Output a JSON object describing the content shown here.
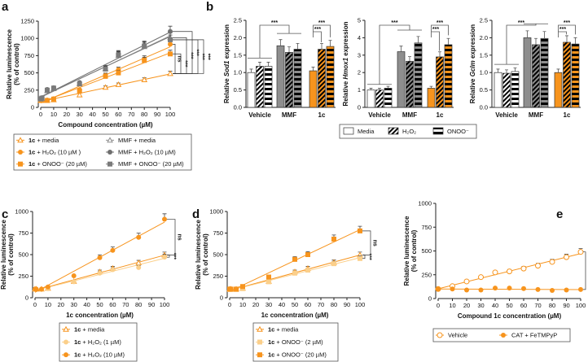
{
  "colors": {
    "orange": "#f7941d",
    "light_orange": "#fbcf8a",
    "gray": "#8e8e8e",
    "dark_gray": "#6e6e6e",
    "axis": "#222222"
  },
  "panel_labels": [
    "a",
    "b",
    "c",
    "d",
    "e"
  ],
  "chart_data": [
    {
      "id": "a",
      "type": "line",
      "xlabel": "Compound concentration (µM)",
      "ylabel": [
        "Relative luminescence",
        "(% of control)"
      ],
      "xlim": [
        0,
        100
      ],
      "ylim": [
        0,
        1250
      ],
      "xticks": [
        "0",
        "10",
        "20",
        "30",
        "40",
        "50",
        "60",
        "70",
        "80",
        "90",
        "100"
      ],
      "yticks": [
        "0",
        "250",
        "500",
        "750",
        "1000",
        "1250"
      ],
      "x": [
        0,
        1,
        5,
        10,
        30,
        50,
        60,
        80,
        100
      ],
      "series": [
        {
          "name_bold": "1c",
          "name": " + media",
          "color": "#f7941d",
          "marker": "triangle-open",
          "values": [
            100,
            100,
            100,
            110,
            180,
            290,
            330,
            400,
            490
          ]
        },
        {
          "name_bold": "1c",
          "name": " + H₂O₂ (10 µM )",
          "color": "#f7941d",
          "marker": "circle",
          "values": [
            100,
            100,
            105,
            125,
            255,
            465,
            545,
            700,
            915
          ]
        },
        {
          "name_bold": "1c",
          "name": " + ONOO⁻ (20 µM)",
          "color": "#f7941d",
          "marker": "square",
          "values": [
            100,
            100,
            100,
            120,
            235,
            450,
            500,
            680,
            775
          ]
        },
        {
          "name_bold": "",
          "name": "MMF + media",
          "color": "#8e8e8e",
          "marker": "triangle-open",
          "values": [
            120,
            130,
            240,
            270,
            345,
            560,
            750,
            880,
            1010
          ]
        },
        {
          "name_bold": "",
          "name": "MMF + H₂O₂ (10 µM)",
          "color": "#6e6e6e",
          "marker": "circle",
          "values": [
            130,
            140,
            260,
            285,
            360,
            570,
            770,
            900,
            1100
          ]
        },
        {
          "name_bold": "",
          "name": "MMF + ONOO⁻ (20 µM)",
          "color": "#7a7a7a",
          "marker": "square",
          "values": [
            125,
            135,
            250,
            280,
            340,
            555,
            760,
            890,
            980
          ]
        }
      ],
      "significance": [
        "ns",
        "***",
        "***",
        "***",
        "***",
        "***"
      ]
    },
    {
      "id": "b1",
      "type": "bar",
      "ylabel_pre": "Relative ",
      "ylabel_gene": "Sod1",
      "ylabel_post": " expression",
      "ylim": [
        0,
        2.5
      ],
      "yticks": [
        "0.0",
        "0.5",
        "1.0",
        "1.5",
        "2.0",
        "2.5"
      ],
      "categories": [
        "Vehicle",
        "MMF",
        "1c"
      ],
      "values": [
        [
          1.0,
          1.18,
          1.18
        ],
        [
          1.77,
          1.58,
          1.67
        ],
        [
          1.05,
          1.67,
          1.75
        ]
      ],
      "significance": [
        "***",
        "***",
        "***"
      ]
    },
    {
      "id": "b2",
      "type": "bar",
      "ylabel_pre": "Relative ",
      "ylabel_gene": "Hmox1",
      "ylabel_post": " expression",
      "ylim": [
        0,
        5
      ],
      "yticks": [
        "0",
        "1",
        "2",
        "3",
        "4",
        "5"
      ],
      "categories": [
        "Vehicle",
        "MMF",
        "1c"
      ],
      "values": [
        [
          1.0,
          1.0,
          1.1
        ],
        [
          3.2,
          2.65,
          3.7
        ],
        [
          1.1,
          2.9,
          3.6
        ]
      ],
      "significance": [
        "***",
        "***",
        "***"
      ]
    },
    {
      "id": "b3",
      "type": "bar",
      "ylabel_pre": "Relative ",
      "ylabel_gene": "Gclm",
      "ylabel_post": " expression",
      "ylim": [
        0,
        2.5
      ],
      "yticks": [
        "0.0",
        "0.5",
        "1.0",
        "1.5",
        "2.0",
        "2.5"
      ],
      "categories": [
        "Vehicle",
        "MMF",
        "1c"
      ],
      "values": [
        [
          1.0,
          0.98,
          1.03
        ],
        [
          2.0,
          1.8,
          1.98
        ],
        [
          1.0,
          1.87,
          1.82
        ]
      ],
      "significance": [
        "***",
        "***",
        "***"
      ]
    },
    {
      "id": "b_legend",
      "type": "legend",
      "entries": [
        "Media",
        "H₂O₂",
        "ONOO⁻"
      ]
    },
    {
      "id": "c",
      "type": "line",
      "xlabel": "1c concentration (µM)",
      "ylabel": [
        "Relative luminescence",
        "(% of control)"
      ],
      "xlim": [
        0,
        100
      ],
      "ylim": [
        0,
        1000
      ],
      "xticks": [
        "0",
        "10",
        "20",
        "30",
        "40",
        "50",
        "60",
        "70",
        "80",
        "90",
        "100"
      ],
      "yticks": [
        "0",
        "250",
        "500",
        "750",
        "1000"
      ],
      "x": [
        0,
        1,
        5,
        10,
        30,
        50,
        60,
        80,
        100
      ],
      "series": [
        {
          "name_bold": "1c",
          "name": " + media",
          "color": "#f7941d",
          "marker": "triangle-open",
          "values": [
            100,
            100,
            100,
            110,
            190,
            300,
            340,
            405,
            495
          ]
        },
        {
          "name_bold": "1c",
          "name": " + H₂O₂ (1 µM)",
          "color": "#fbcf8a",
          "marker": "circle",
          "values": [
            95,
            95,
            95,
            105,
            185,
            285,
            325,
            350,
            470
          ]
        },
        {
          "name_bold": "1c",
          "name": " + H₂O₂ (10 µM)",
          "color": "#f7941d",
          "marker": "circle",
          "values": [
            100,
            100,
            100,
            125,
            255,
            465,
            550,
            700,
            910
          ]
        }
      ],
      "significance": [
        "***",
        "ns"
      ]
    },
    {
      "id": "d",
      "type": "line",
      "xlabel": "1c concentration (µM)",
      "ylabel": [
        "Relative luminescence",
        "(% of control)"
      ],
      "xlim": [
        0,
        100
      ],
      "ylim": [
        0,
        1000
      ],
      "xticks": [
        "0",
        "10",
        "20",
        "30",
        "40",
        "50",
        "60",
        "70",
        "80",
        "90",
        "100"
      ],
      "yticks": [
        "0",
        "250",
        "500",
        "750",
        "1000"
      ],
      "x": [
        0,
        1,
        5,
        10,
        30,
        50,
        60,
        80,
        100
      ],
      "series": [
        {
          "name_bold": "1c",
          "name": " + media",
          "color": "#f7941d",
          "marker": "triangle-open",
          "values": [
            100,
            100,
            100,
            110,
            190,
            300,
            340,
            410,
            495
          ]
        },
        {
          "name_bold": "1c",
          "name": " + ONOO⁻ (2 µM)",
          "color": "#fbcf8a",
          "marker": "square",
          "values": [
            95,
            95,
            95,
            105,
            185,
            285,
            320,
            395,
            455
          ]
        },
        {
          "name_bold": "1c",
          "name": " + ONOO⁻ (20 µM)",
          "color": "#f7941d",
          "marker": "square",
          "values": [
            100,
            100,
            100,
            130,
            240,
            445,
            500,
            680,
            775
          ]
        }
      ],
      "significance": [
        "***",
        "ns"
      ]
    },
    {
      "id": "e",
      "type": "line",
      "xlabel": "Compound 1c concentration (µM)",
      "ylabel": [
        "Relative luminescence",
        "(% of control)"
      ],
      "xlim": [
        0,
        100
      ],
      "ylim": [
        0,
        1000
      ],
      "xticks": [
        "0",
        "10",
        "20",
        "30",
        "40",
        "50",
        "60",
        "70",
        "80",
        "90",
        "100"
      ],
      "yticks": [
        "0",
        "250",
        "500",
        "750",
        "1000"
      ],
      "x": [
        0,
        10,
        20,
        30,
        40,
        50,
        60,
        70,
        80,
        90,
        100
      ],
      "series": [
        {
          "name_bold": "",
          "name": "Vehicle",
          "color": "#f7941d",
          "marker": "circle-open",
          "values": [
            100,
            130,
            180,
            225,
            275,
            285,
            315,
            345,
            385,
            435,
            490
          ]
        },
        {
          "name_bold": "",
          "name": "CAT + FeTMPyP",
          "color": "#f7941d",
          "marker": "circle",
          "values": [
            100,
            100,
            90,
            90,
            110,
            110,
            105,
            95,
            85,
            90,
            95
          ]
        }
      ],
      "significance": [
        "***"
      ]
    }
  ]
}
